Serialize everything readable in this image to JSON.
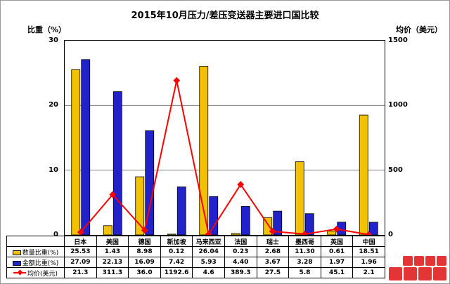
{
  "chart": {
    "title": "2015年10月压力/差压变送器主要进口国比较",
    "left_axis_label": "比重（%）",
    "right_axis_label": "均价（美元）"
  },
  "chart_data": {
    "type": "bar",
    "combo": "grouped bars on left axis + line with diamond markers on right axis",
    "title": "2015年10月压力/差压变送器主要进口国比较",
    "categories": [
      "日本",
      "美国",
      "德国",
      "新加坡",
      "马来西亚",
      "法国",
      "瑞士",
      "墨西哥",
      "英国",
      "中国"
    ],
    "series": [
      {
        "name": "数量比重(%)",
        "type": "bar",
        "axis": "left",
        "color": "#F2C200",
        "values": [
          "25.53",
          "1.43",
          "8.98",
          "0.12",
          "26.04",
          "0.23",
          "2.68",
          "11.30",
          "0.61",
          "18.51"
        ]
      },
      {
        "name": "金额比重(%)",
        "type": "bar",
        "axis": "left",
        "color": "#2222CC",
        "values": [
          "27.09",
          "22.13",
          "16.09",
          "7.42",
          "5.93",
          "4.40",
          "3.67",
          "3.28",
          "1.97",
          "1.96"
        ]
      },
      {
        "name": "均价(美元)",
        "type": "line",
        "axis": "right",
        "color": "#FF0000",
        "values": [
          "21.3",
          "311.3",
          "36.0",
          "1192.6",
          "4.6",
          "389.3",
          "27.5",
          "5.8",
          "45.1",
          "2.1"
        ]
      }
    ],
    "left_axis": {
      "label": "比重（%）",
      "range": [
        0,
        30
      ],
      "ticks": [
        0,
        10,
        20,
        30
      ]
    },
    "right_axis": {
      "label": "均价（美元）",
      "range": [
        0,
        1500
      ],
      "ticks": [
        0,
        500,
        1000,
        1500
      ]
    },
    "grid": true,
    "legend_position": "table-rows-left"
  }
}
